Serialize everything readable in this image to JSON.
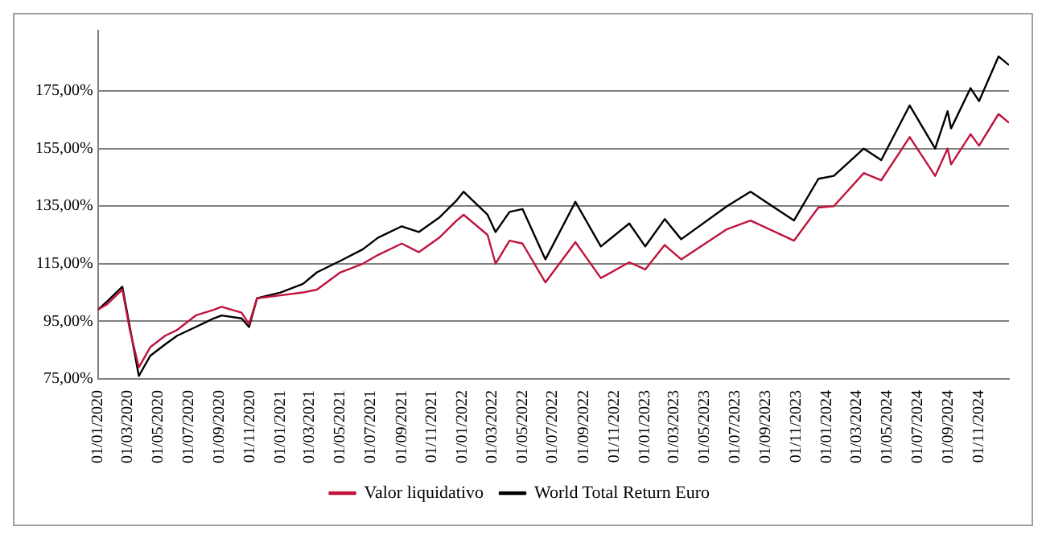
{
  "chart_data": {
    "type": "line",
    "xlim": [
      "2020-01-01",
      "2024-12-31"
    ],
    "xticks": [
      {
        "value": "2020-01-01",
        "label": "01/01/2020"
      },
      {
        "value": "2020-03-01",
        "label": "01/03/2020"
      },
      {
        "value": "2020-05-01",
        "label": "01/05/2020"
      },
      {
        "value": "2020-07-01",
        "label": "01/07/2020"
      },
      {
        "value": "2020-09-01",
        "label": "01/09/2020"
      },
      {
        "value": "2020-11-01",
        "label": "01/11/2020"
      },
      {
        "value": "2021-01-01",
        "label": "01/01/2021"
      },
      {
        "value": "2021-03-01",
        "label": "01/03/2021"
      },
      {
        "value": "2021-05-01",
        "label": "01/05/2021"
      },
      {
        "value": "2021-07-01",
        "label": "01/07/2021"
      },
      {
        "value": "2021-09-01",
        "label": "01/09/2021"
      },
      {
        "value": "2021-11-01",
        "label": "01/11/2021"
      },
      {
        "value": "2022-01-01",
        "label": "01/01/2022"
      },
      {
        "value": "2022-03-01",
        "label": "01/03/2022"
      },
      {
        "value": "2022-05-01",
        "label": "01/05/2022"
      },
      {
        "value": "2022-07-01",
        "label": "01/07/2022"
      },
      {
        "value": "2022-09-01",
        "label": "01/09/2022"
      },
      {
        "value": "2022-11-01",
        "label": "01/11/2022"
      },
      {
        "value": "2023-01-01",
        "label": "01/01/2023"
      },
      {
        "value": "2023-03-01",
        "label": "01/03/2023"
      },
      {
        "value": "2023-05-01",
        "label": "01/05/2023"
      },
      {
        "value": "2023-07-01",
        "label": "01/07/2023"
      },
      {
        "value": "2023-09-01",
        "label": "01/09/2023"
      },
      {
        "value": "2023-11-01",
        "label": "01/11/2023"
      },
      {
        "value": "2024-01-01",
        "label": "01/01/2024"
      },
      {
        "value": "2024-03-01",
        "label": "01/03/2024"
      },
      {
        "value": "2024-05-01",
        "label": "01/05/2024"
      },
      {
        "value": "2024-07-01",
        "label": "01/07/2024"
      },
      {
        "value": "2024-09-01",
        "label": "01/09/2024"
      },
      {
        "value": "2024-11-01",
        "label": "01/11/2024"
      }
    ],
    "ylim": [
      75,
      196
    ],
    "yticks": [
      {
        "value": 75,
        "label": "75,00%"
      },
      {
        "value": 95,
        "label": "95,00%"
      },
      {
        "value": 115,
        "label": "115,00%"
      },
      {
        "value": 135,
        "label": "135,00%"
      },
      {
        "value": 155,
        "label": "155,00%"
      },
      {
        "value": 175,
        "label": "175,00%"
      }
    ],
    "x": [
      "2020-01-01",
      "2020-01-20",
      "2020-02-19",
      "2020-03-05",
      "2020-03-23",
      "2020-04-15",
      "2020-05-15",
      "2020-06-08",
      "2020-07-15",
      "2020-08-20",
      "2020-09-05",
      "2020-10-15",
      "2020-10-30",
      "2020-11-15",
      "2021-01-01",
      "2021-02-15",
      "2021-03-15",
      "2021-05-01",
      "2021-06-15",
      "2021-07-15",
      "2021-09-01",
      "2021-10-05",
      "2021-11-15",
      "2021-12-20",
      "2022-01-03",
      "2022-02-20",
      "2022-03-08",
      "2022-04-05",
      "2022-05-01",
      "2022-06-16",
      "2022-08-15",
      "2022-10-05",
      "2022-12-01",
      "2023-01-02",
      "2023-02-10",
      "2023-03-15",
      "2023-06-15",
      "2023-08-01",
      "2023-10-27",
      "2023-12-15",
      "2024-01-15",
      "2024-03-15",
      "2024-04-19",
      "2024-06-15",
      "2024-08-05",
      "2024-08-30",
      "2024-09-06",
      "2024-10-15",
      "2024-11-01",
      "2024-12-10",
      "2024-12-31"
    ],
    "series": [
      {
        "name": "Valor liquidativo",
        "color": "#c0143c",
        "values": [
          99,
          101,
          106,
          92,
          79,
          86,
          90,
          92,
          97,
          99,
          100,
          98,
          94,
          103,
          104,
          105,
          106,
          112,
          115,
          118,
          122,
          119,
          124,
          130,
          132,
          125,
          115,
          123,
          122,
          108.5,
          122.5,
          110,
          115.5,
          113,
          121.5,
          116.5,
          127,
          130,
          123,
          134.5,
          135,
          146.5,
          144,
          159,
          145.5,
          155,
          149.5,
          160,
          156,
          167,
          164
        ]
      },
      {
        "name": "World Total Return Euro",
        "color": "#000000",
        "values": [
          99,
          102,
          107,
          93,
          76,
          83,
          87,
          90,
          93,
          96,
          97,
          96,
          93,
          103,
          105,
          108,
          112,
          116,
          120,
          124,
          128,
          126,
          131,
          137,
          140,
          132,
          126,
          133,
          134,
          116.5,
          136.5,
          121,
          129,
          121,
          130.5,
          123.5,
          135,
          140,
          130,
          144.5,
          145.5,
          155,
          151,
          170,
          155,
          168,
          162,
          176,
          171.5,
          187,
          184
        ]
      }
    ],
    "grid": "y",
    "legend": "bottom",
    "line_style": "solid",
    "marker": "none"
  }
}
